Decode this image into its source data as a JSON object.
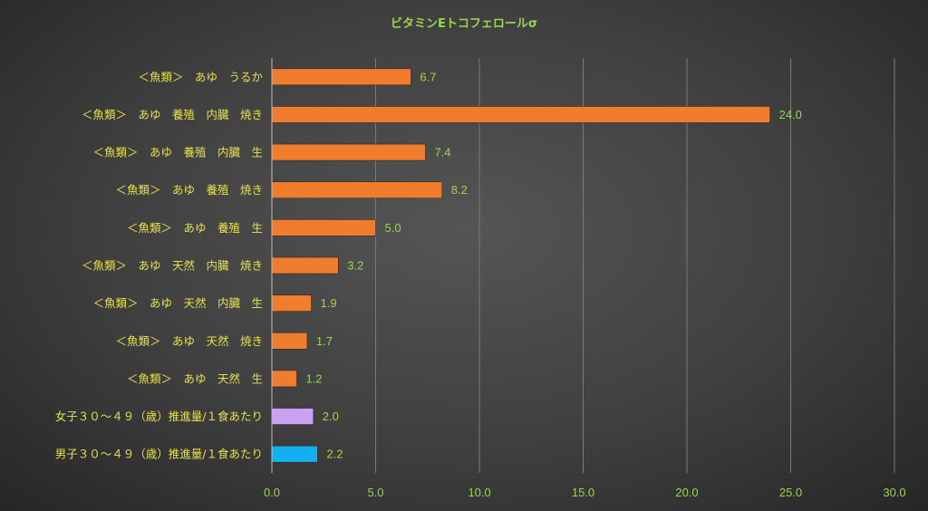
{
  "chart_data": {
    "type": "bar",
    "orientation": "horizontal",
    "title": "ビタミンEトコフェロールσ",
    "categories": [
      "＜魚類＞　あゆ　うるか",
      "＜魚類＞　あゆ　養殖　内臓　焼き",
      "＜魚類＞　あゆ　養殖　内臓　生",
      "＜魚類＞　あゆ　養殖　焼き",
      "＜魚類＞　あゆ　養殖　生",
      "＜魚類＞　あゆ　天然　内臓　焼き",
      "＜魚類＞　あゆ　天然　内臓　生",
      "＜魚類＞　あゆ　天然　焼き",
      "＜魚類＞　あゆ　天然　生",
      "女子３０～４９（歳）推進量/１食あたり",
      "男子３０～４９（歳）推進量/１食あたり"
    ],
    "values": [
      6.7,
      24.0,
      7.4,
      8.2,
      5.0,
      3.2,
      1.9,
      1.7,
      1.2,
      2.0,
      2.2
    ],
    "value_labels": [
      "6.7",
      "24.0",
      "7.4",
      "8.2",
      "5.0",
      "3.2",
      "1.9",
      "1.7",
      "1.2",
      "2.0",
      "2.2"
    ],
    "bar_colors": [
      "#f07d2e",
      "#f07d2e",
      "#f07d2e",
      "#f07d2e",
      "#f07d2e",
      "#f07d2e",
      "#f07d2e",
      "#f07d2e",
      "#f07d2e",
      "#c9a0f2",
      "#12b0f0"
    ],
    "xlim": [
      0,
      30
    ],
    "xticks": [
      0,
      5,
      10,
      15,
      20,
      25,
      30
    ],
    "xtick_labels": [
      "0.0",
      "5.0",
      "10.0",
      "15.0",
      "20.0",
      "25.0",
      "30.0"
    ],
    "xlabel": "",
    "ylabel": "",
    "grid": true,
    "legend": "none",
    "colors": {
      "title": "#9bd64a",
      "category_labels": "#e6e04a",
      "value_labels": "#9bd64a",
      "tick_labels": "#9bd64a",
      "gridlines": "#7a7a7a",
      "axis": "#bdbdbd"
    }
  }
}
